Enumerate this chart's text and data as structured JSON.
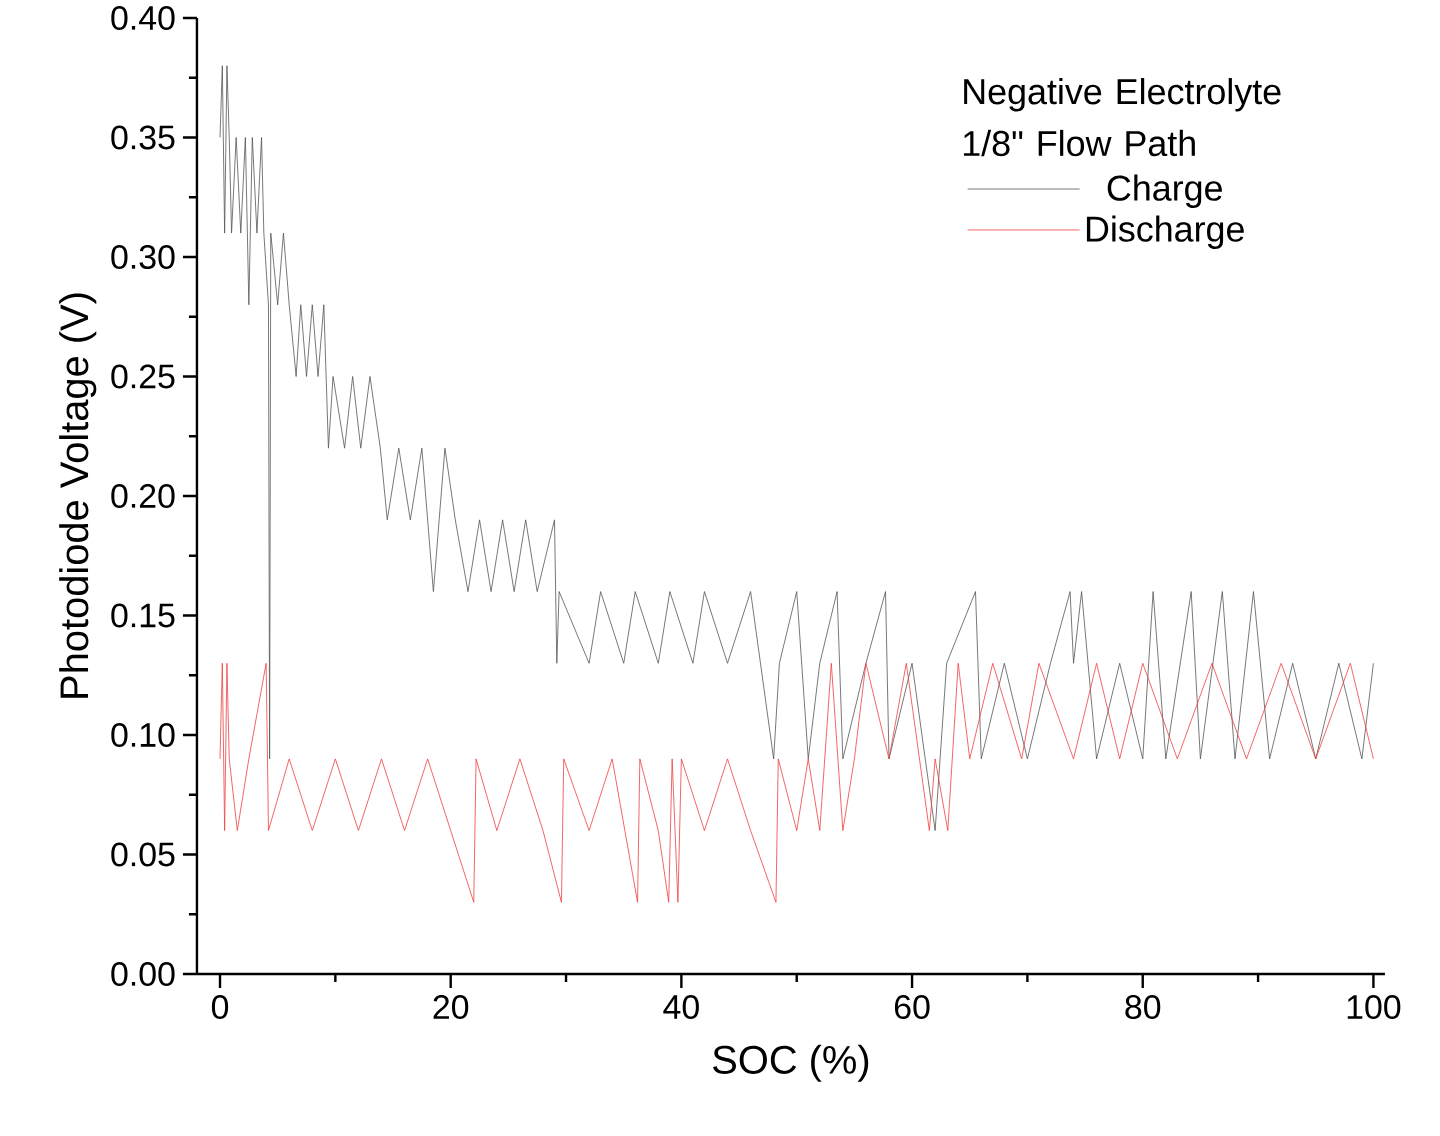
{
  "chart_data": {
    "type": "line",
    "xlabel": "SOC (%)",
    "ylabel": "Photodiode Voltage (V)",
    "legend_title": "Negative Electrolyte 1/8\" Flow Path",
    "xlim": [
      -2,
      101
    ],
    "xticks": [
      0,
      20,
      40,
      60,
      80,
      100
    ],
    "ylim": [
      0,
      0.4
    ],
    "yticks": [
      {
        "value": 0,
        "label": "0.00"
      },
      {
        "value": 0.05,
        "label": "0.05"
      },
      {
        "value": 0.1,
        "label": "0.10"
      },
      {
        "value": 0.15,
        "label": "0.15"
      },
      {
        "value": 0.2,
        "label": "0.20"
      },
      {
        "value": 0.25,
        "label": "0.25"
      },
      {
        "value": 0.3,
        "label": "0.30"
      },
      {
        "value": 0.35,
        "label": "0.35"
      },
      {
        "value": 0.4,
        "label": "0.40"
      }
    ],
    "grid": false,
    "legend": "top right",
    "marker": "none",
    "line_style": "solid",
    "series": [
      {
        "name": "Charge",
        "color": "#555555",
        "x": [
          0,
          0.2,
          0.4,
          0.6,
          0.8,
          1.0,
          1.4,
          1.8,
          2.2,
          2.5,
          2.8,
          3.2,
          3.6,
          3.8,
          4.2,
          4.3,
          4.4,
          5.0,
          5.5,
          6.0,
          6.6,
          7.0,
          7.5,
          8.0,
          8.5,
          9.0,
          9.4,
          9.8,
          10.8,
          11.5,
          12.2,
          13.0,
          13.9,
          14.5,
          15.5,
          16.5,
          17.5,
          18.5,
          19.5,
          20.4,
          21.5,
          22.5,
          23.5,
          24.5,
          25.5,
          26.5,
          27.5,
          29.0,
          29.2,
          29.4,
          32,
          33,
          35,
          36,
          38,
          39,
          41,
          42,
          44,
          46,
          48,
          48.5,
          50,
          51,
          52,
          53.5,
          54,
          56,
          57.7,
          58,
          60,
          62,
          63,
          65.5,
          66,
          68,
          70,
          72,
          73.7,
          74,
          74.7,
          76,
          78,
          80,
          80.9,
          82,
          84.2,
          85,
          86.9,
          88,
          89.6,
          91,
          93,
          95,
          97,
          99,
          100
        ],
        "values": [
          0.35,
          0.38,
          0.31,
          0.38,
          0.35,
          0.31,
          0.35,
          0.31,
          0.35,
          0.28,
          0.35,
          0.31,
          0.35,
          0.31,
          0.28,
          0.09,
          0.31,
          0.28,
          0.31,
          0.28,
          0.25,
          0.28,
          0.25,
          0.28,
          0.25,
          0.28,
          0.22,
          0.25,
          0.22,
          0.25,
          0.22,
          0.25,
          0.22,
          0.19,
          0.22,
          0.19,
          0.22,
          0.16,
          0.22,
          0.19,
          0.16,
          0.19,
          0.16,
          0.19,
          0.16,
          0.19,
          0.16,
          0.19,
          0.13,
          0.16,
          0.13,
          0.16,
          0.13,
          0.16,
          0.13,
          0.16,
          0.13,
          0.16,
          0.13,
          0.16,
          0.09,
          0.13,
          0.16,
          0.09,
          0.13,
          0.16,
          0.09,
          0.13,
          0.16,
          0.09,
          0.13,
          0.06,
          0.13,
          0.16,
          0.09,
          0.13,
          0.09,
          0.13,
          0.16,
          0.13,
          0.16,
          0.09,
          0.13,
          0.09,
          0.16,
          0.09,
          0.16,
          0.09,
          0.16,
          0.09,
          0.16,
          0.09,
          0.13,
          0.09,
          0.13,
          0.09,
          0.13
        ]
      },
      {
        "name": "Discharge",
        "color": "#f04040",
        "x": [
          0,
          0.2,
          0.4,
          0.6,
          0.8,
          1.5,
          2.5,
          4.0,
          4.2,
          6,
          8,
          10,
          12,
          14,
          16,
          18,
          20,
          22,
          22.2,
          24,
          26,
          28,
          29.6,
          29.8,
          32,
          34,
          36.2,
          36.4,
          38,
          38.9,
          39.2,
          39.7,
          40,
          42,
          44,
          46,
          48.2,
          48.4,
          50,
          51,
          52,
          53,
          54,
          55,
          56,
          58,
          59.5,
          61.5,
          62,
          63.1,
          64,
          65,
          67,
          69.5,
          71,
          74,
          76,
          78,
          80,
          83,
          86,
          89,
          92,
          95,
          98,
          100
        ],
        "values": [
          0.09,
          0.13,
          0.06,
          0.13,
          0.09,
          0.06,
          0.09,
          0.13,
          0.06,
          0.09,
          0.06,
          0.09,
          0.06,
          0.09,
          0.06,
          0.09,
          0.06,
          0.03,
          0.09,
          0.06,
          0.09,
          0.06,
          0.03,
          0.09,
          0.06,
          0.09,
          0.03,
          0.09,
          0.06,
          0.03,
          0.09,
          0.03,
          0.09,
          0.06,
          0.09,
          0.06,
          0.03,
          0.09,
          0.06,
          0.09,
          0.06,
          0.13,
          0.06,
          0.09,
          0.13,
          0.09,
          0.13,
          0.06,
          0.09,
          0.06,
          0.13,
          0.09,
          0.13,
          0.09,
          0.13,
          0.09,
          0.13,
          0.09,
          0.13,
          0.09,
          0.13,
          0.09,
          0.13,
          0.09,
          0.13,
          0.09
        ]
      }
    ]
  }
}
